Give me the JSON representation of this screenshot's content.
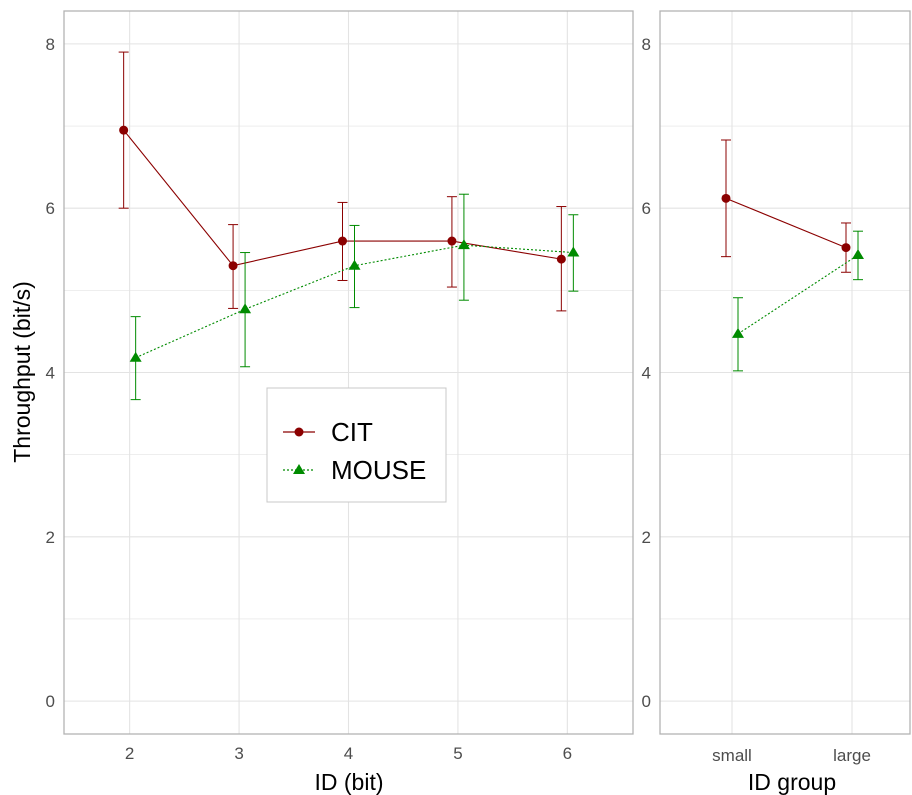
{
  "colors": {
    "cit": "#8b0000",
    "mouse": "#008b00",
    "grid": "#e3e3e3",
    "panel_border": "#b3b3b3",
    "tick_text": "#4d4d4d",
    "axis_title": "#000000"
  },
  "shared": {
    "ylabel": "Throughput (bit/s)",
    "ylim": [
      -0.4,
      8.4
    ],
    "y_ticks": [
      "0",
      "2",
      "4",
      "6",
      "8"
    ]
  },
  "legend": {
    "position": "inside-left-panel-center",
    "items": [
      {
        "label": "CIT",
        "marker": "circle",
        "line": "solid"
      },
      {
        "label": "MOUSE",
        "marker": "triangle",
        "line": "dotted"
      }
    ]
  },
  "chart_data": [
    {
      "type": "line",
      "panel": "left",
      "xlabel": "ID (bit)",
      "x": [
        2,
        3,
        4,
        5,
        6
      ],
      "x_ticks": [
        "2",
        "3",
        "4",
        "5",
        "6"
      ],
      "xlim": [
        1.4,
        6.6
      ],
      "ylim": [
        -0.4,
        8.4
      ],
      "grid": true,
      "series": [
        {
          "name": "CIT",
          "y": [
            6.95,
            5.3,
            5.6,
            5.6,
            5.38
          ],
          "lower": [
            6.0,
            4.78,
            5.12,
            5.04,
            4.75
          ],
          "upper": [
            7.9,
            5.8,
            6.07,
            6.14,
            6.02
          ]
        },
        {
          "name": "MOUSE",
          "y": [
            4.18,
            4.77,
            5.3,
            5.55,
            5.46
          ],
          "lower": [
            3.67,
            4.07,
            4.79,
            4.88,
            4.99
          ],
          "upper": [
            4.68,
            5.46,
            5.79,
            6.17,
            5.92
          ]
        }
      ]
    },
    {
      "type": "line",
      "panel": "right",
      "xlabel": "ID group",
      "categories": [
        "small",
        "large"
      ],
      "grid": true,
      "series": [
        {
          "name": "CIT",
          "y": [
            6.12,
            5.52
          ],
          "lower": [
            5.41,
            5.22
          ],
          "upper": [
            6.83,
            5.82
          ]
        },
        {
          "name": "MOUSE",
          "y": [
            4.47,
            5.43
          ],
          "lower": [
            4.02,
            5.13
          ],
          "upper": [
            4.91,
            5.72
          ]
        }
      ]
    }
  ]
}
